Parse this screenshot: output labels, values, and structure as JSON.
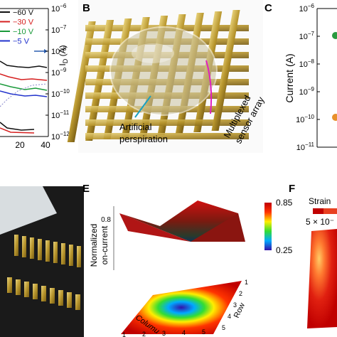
{
  "panel_a": {
    "legend": [
      {
        "name": "−60 V",
        "color": "#111111"
      },
      {
        "name": "−30 V",
        "color": "#d62020"
      },
      {
        "name": "−10 V",
        "color": "#1a9a3a"
      },
      {
        "name": "−5 V",
        "color": "#2233cc"
      }
    ],
    "y_ticks": [
      {
        "base": "10",
        "exp": "−6"
      },
      {
        "base": "10",
        "exp": "−7"
      },
      {
        "base": "10",
        "exp": "−8"
      },
      {
        "base": "10",
        "exp": "−9"
      },
      {
        "base": "10",
        "exp": "−10"
      },
      {
        "base": "10",
        "exp": "−11"
      },
      {
        "base": "10",
        "exp": "−12"
      }
    ],
    "y_label": {
      "main": "I",
      "sub": "D",
      "unit": " (A)"
    },
    "x_ticks": [
      "20",
      "40"
    ]
  },
  "panel_b": {
    "label": "B",
    "annotation_1": [
      "Artificial",
      "perspiration"
    ],
    "annotation_2": [
      "Multiplexed",
      "sensor array"
    ]
  },
  "panel_c": {
    "label": "C",
    "y_label": "Current (A)",
    "y_ticks": [
      {
        "base": "10",
        "exp": "−6"
      },
      {
        "base": "10",
        "exp": "−7"
      },
      {
        "base": "10",
        "exp": "−8"
      },
      {
        "base": "10",
        "exp": "−9"
      },
      {
        "base": "10",
        "exp": "−10"
      },
      {
        "base": "10",
        "exp": "−11"
      }
    ]
  },
  "panel_e": {
    "label": "E",
    "z_label": [
      "Normalized",
      "on-current"
    ],
    "colorbar_ticks": [
      "0.85",
      "0.25"
    ],
    "x_label": "Columu",
    "y_label": "Row",
    "x_ticks": [
      "1",
      "2",
      "3",
      "4",
      "5"
    ],
    "y_ticks": [
      "1",
      "2",
      "3",
      "4",
      "5"
    ]
  },
  "panel_f": {
    "label": "F",
    "legend_title": "Strain",
    "legend_value": "5 × 10⁻"
  }
}
